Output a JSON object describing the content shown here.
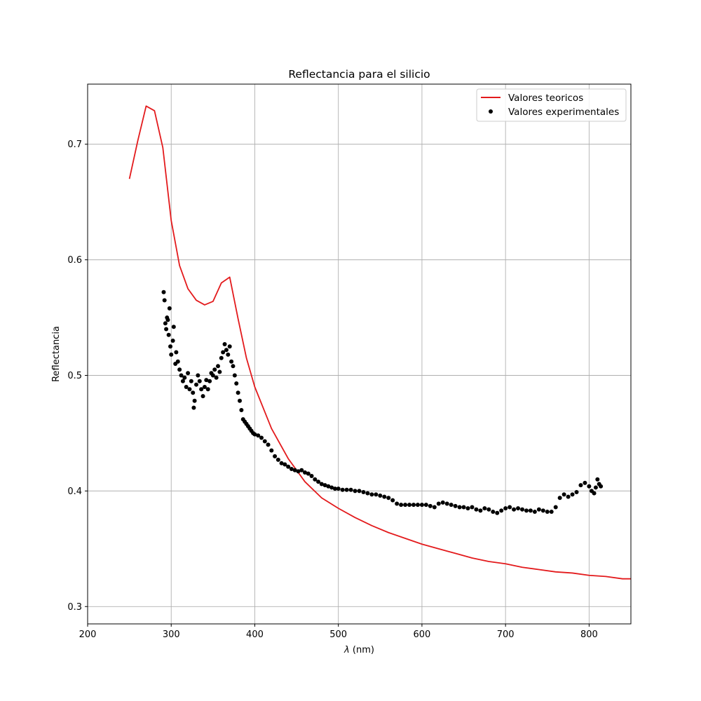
{
  "chart_data": {
    "type": "line",
    "title": "Reflectancia para el silicio",
    "xlabel_symbol": "λ",
    "xlabel_unit": " (nm)",
    "ylabel": "Reflectancia",
    "xlim": [
      200,
      850
    ],
    "ylim": [
      0.285,
      0.752
    ],
    "x_ticks": [
      200,
      300,
      400,
      500,
      600,
      700,
      800
    ],
    "x_tick_labels": [
      "200",
      "300",
      "400",
      "500",
      "600",
      "700",
      "800"
    ],
    "y_ticks": [
      0.3,
      0.4,
      0.5,
      0.6,
      0.7
    ],
    "y_tick_labels": [
      "0.3",
      "0.4",
      "0.5",
      "0.6",
      "0.7"
    ],
    "grid": true,
    "legend_position": "top-right",
    "series": [
      {
        "name": "Valores teoricos",
        "kind": "line",
        "color": "#e31a1c",
        "points": [
          [
            250,
            0.67
          ],
          [
            260,
            0.703
          ],
          [
            270,
            0.733
          ],
          [
            280,
            0.729
          ],
          [
            290,
            0.697
          ],
          [
            300,
            0.634
          ],
          [
            310,
            0.595
          ],
          [
            320,
            0.575
          ],
          [
            330,
            0.565
          ],
          [
            340,
            0.561
          ],
          [
            350,
            0.564
          ],
          [
            360,
            0.58
          ],
          [
            370,
            0.585
          ],
          [
            380,
            0.549
          ],
          [
            390,
            0.515
          ],
          [
            400,
            0.49
          ],
          [
            420,
            0.454
          ],
          [
            440,
            0.428
          ],
          [
            460,
            0.408
          ],
          [
            480,
            0.394
          ],
          [
            500,
            0.385
          ],
          [
            520,
            0.377
          ],
          [
            540,
            0.37
          ],
          [
            560,
            0.364
          ],
          [
            580,
            0.359
          ],
          [
            600,
            0.354
          ],
          [
            620,
            0.35
          ],
          [
            640,
            0.346
          ],
          [
            660,
            0.342
          ],
          [
            680,
            0.339
          ],
          [
            700,
            0.337
          ],
          [
            720,
            0.334
          ],
          [
            740,
            0.332
          ],
          [
            760,
            0.33
          ],
          [
            780,
            0.329
          ],
          [
            800,
            0.327
          ],
          [
            820,
            0.326
          ],
          [
            840,
            0.324
          ],
          [
            850,
            0.324
          ]
        ]
      },
      {
        "name": "Valores experimentales",
        "kind": "scatter",
        "color": "#000000",
        "points": [
          [
            291,
            0.572
          ],
          [
            292,
            0.565
          ],
          [
            293,
            0.545
          ],
          [
            294,
            0.54
          ],
          [
            295,
            0.55
          ],
          [
            296,
            0.548
          ],
          [
            297,
            0.535
          ],
          [
            298,
            0.558
          ],
          [
            299,
            0.525
          ],
          [
            300,
            0.518
          ],
          [
            302,
            0.53
          ],
          [
            303,
            0.542
          ],
          [
            305,
            0.51
          ],
          [
            306,
            0.52
          ],
          [
            308,
            0.512
          ],
          [
            310,
            0.505
          ],
          [
            312,
            0.5
          ],
          [
            314,
            0.495
          ],
          [
            316,
            0.498
          ],
          [
            318,
            0.49
          ],
          [
            320,
            0.502
          ],
          [
            322,
            0.488
          ],
          [
            324,
            0.495
          ],
          [
            326,
            0.485
          ],
          [
            327,
            0.472
          ],
          [
            328,
            0.478
          ],
          [
            330,
            0.492
          ],
          [
            332,
            0.5
          ],
          [
            334,
            0.495
          ],
          [
            336,
            0.488
          ],
          [
            338,
            0.482
          ],
          [
            340,
            0.49
          ],
          [
            342,
            0.496
          ],
          [
            344,
            0.488
          ],
          [
            346,
            0.495
          ],
          [
            348,
            0.502
          ],
          [
            350,
            0.5
          ],
          [
            352,
            0.505
          ],
          [
            354,
            0.498
          ],
          [
            356,
            0.508
          ],
          [
            358,
            0.503
          ],
          [
            360,
            0.515
          ],
          [
            362,
            0.52
          ],
          [
            364,
            0.527
          ],
          [
            366,
            0.522
          ],
          [
            368,
            0.518
          ],
          [
            370,
            0.525
          ],
          [
            372,
            0.512
          ],
          [
            374,
            0.508
          ],
          [
            376,
            0.5
          ],
          [
            378,
            0.493
          ],
          [
            380,
            0.485
          ],
          [
            382,
            0.478
          ],
          [
            384,
            0.47
          ],
          [
            386,
            0.462
          ],
          [
            388,
            0.46
          ],
          [
            390,
            0.458
          ],
          [
            392,
            0.456
          ],
          [
            394,
            0.454
          ],
          [
            396,
            0.452
          ],
          [
            398,
            0.45
          ],
          [
            400,
            0.449
          ],
          [
            404,
            0.448
          ],
          [
            408,
            0.446
          ],
          [
            412,
            0.443
          ],
          [
            416,
            0.44
          ],
          [
            420,
            0.435
          ],
          [
            424,
            0.43
          ],
          [
            428,
            0.427
          ],
          [
            432,
            0.424
          ],
          [
            436,
            0.423
          ],
          [
            440,
            0.421
          ],
          [
            444,
            0.419
          ],
          [
            448,
            0.418
          ],
          [
            452,
            0.417
          ],
          [
            456,
            0.418
          ],
          [
            460,
            0.416
          ],
          [
            464,
            0.415
          ],
          [
            468,
            0.413
          ],
          [
            472,
            0.41
          ],
          [
            476,
            0.408
          ],
          [
            480,
            0.406
          ],
          [
            484,
            0.405
          ],
          [
            488,
            0.404
          ],
          [
            492,
            0.403
          ],
          [
            496,
            0.402
          ],
          [
            500,
            0.402
          ],
          [
            505,
            0.401
          ],
          [
            510,
            0.401
          ],
          [
            515,
            0.401
          ],
          [
            520,
            0.4
          ],
          [
            525,
            0.4
          ],
          [
            530,
            0.399
          ],
          [
            535,
            0.398
          ],
          [
            540,
            0.397
          ],
          [
            545,
            0.397
          ],
          [
            550,
            0.396
          ],
          [
            555,
            0.395
          ],
          [
            560,
            0.394
          ],
          [
            565,
            0.392
          ],
          [
            570,
            0.389
          ],
          [
            575,
            0.388
          ],
          [
            580,
            0.388
          ],
          [
            585,
            0.388
          ],
          [
            590,
            0.388
          ],
          [
            595,
            0.388
          ],
          [
            600,
            0.388
          ],
          [
            605,
            0.388
          ],
          [
            610,
            0.387
          ],
          [
            615,
            0.386
          ],
          [
            620,
            0.389
          ],
          [
            625,
            0.39
          ],
          [
            630,
            0.389
          ],
          [
            635,
            0.388
          ],
          [
            640,
            0.387
          ],
          [
            645,
            0.386
          ],
          [
            650,
            0.386
          ],
          [
            655,
            0.385
          ],
          [
            660,
            0.386
          ],
          [
            665,
            0.384
          ],
          [
            670,
            0.383
          ],
          [
            675,
            0.385
          ],
          [
            680,
            0.384
          ],
          [
            685,
            0.382
          ],
          [
            690,
            0.381
          ],
          [
            695,
            0.383
          ],
          [
            700,
            0.385
          ],
          [
            705,
            0.386
          ],
          [
            710,
            0.384
          ],
          [
            715,
            0.385
          ],
          [
            720,
            0.384
          ],
          [
            725,
            0.383
          ],
          [
            730,
            0.383
          ],
          [
            735,
            0.382
          ],
          [
            740,
            0.384
          ],
          [
            745,
            0.383
          ],
          [
            750,
            0.382
          ],
          [
            755,
            0.382
          ],
          [
            760,
            0.386
          ],
          [
            765,
            0.394
          ],
          [
            770,
            0.397
          ],
          [
            775,
            0.395
          ],
          [
            780,
            0.397
          ],
          [
            785,
            0.399
          ],
          [
            790,
            0.405
          ],
          [
            795,
            0.407
          ],
          [
            800,
            0.404
          ],
          [
            803,
            0.4
          ],
          [
            806,
            0.398
          ],
          [
            808,
            0.403
          ],
          [
            810,
            0.41
          ],
          [
            812,
            0.406
          ],
          [
            814,
            0.404
          ]
        ]
      }
    ]
  }
}
